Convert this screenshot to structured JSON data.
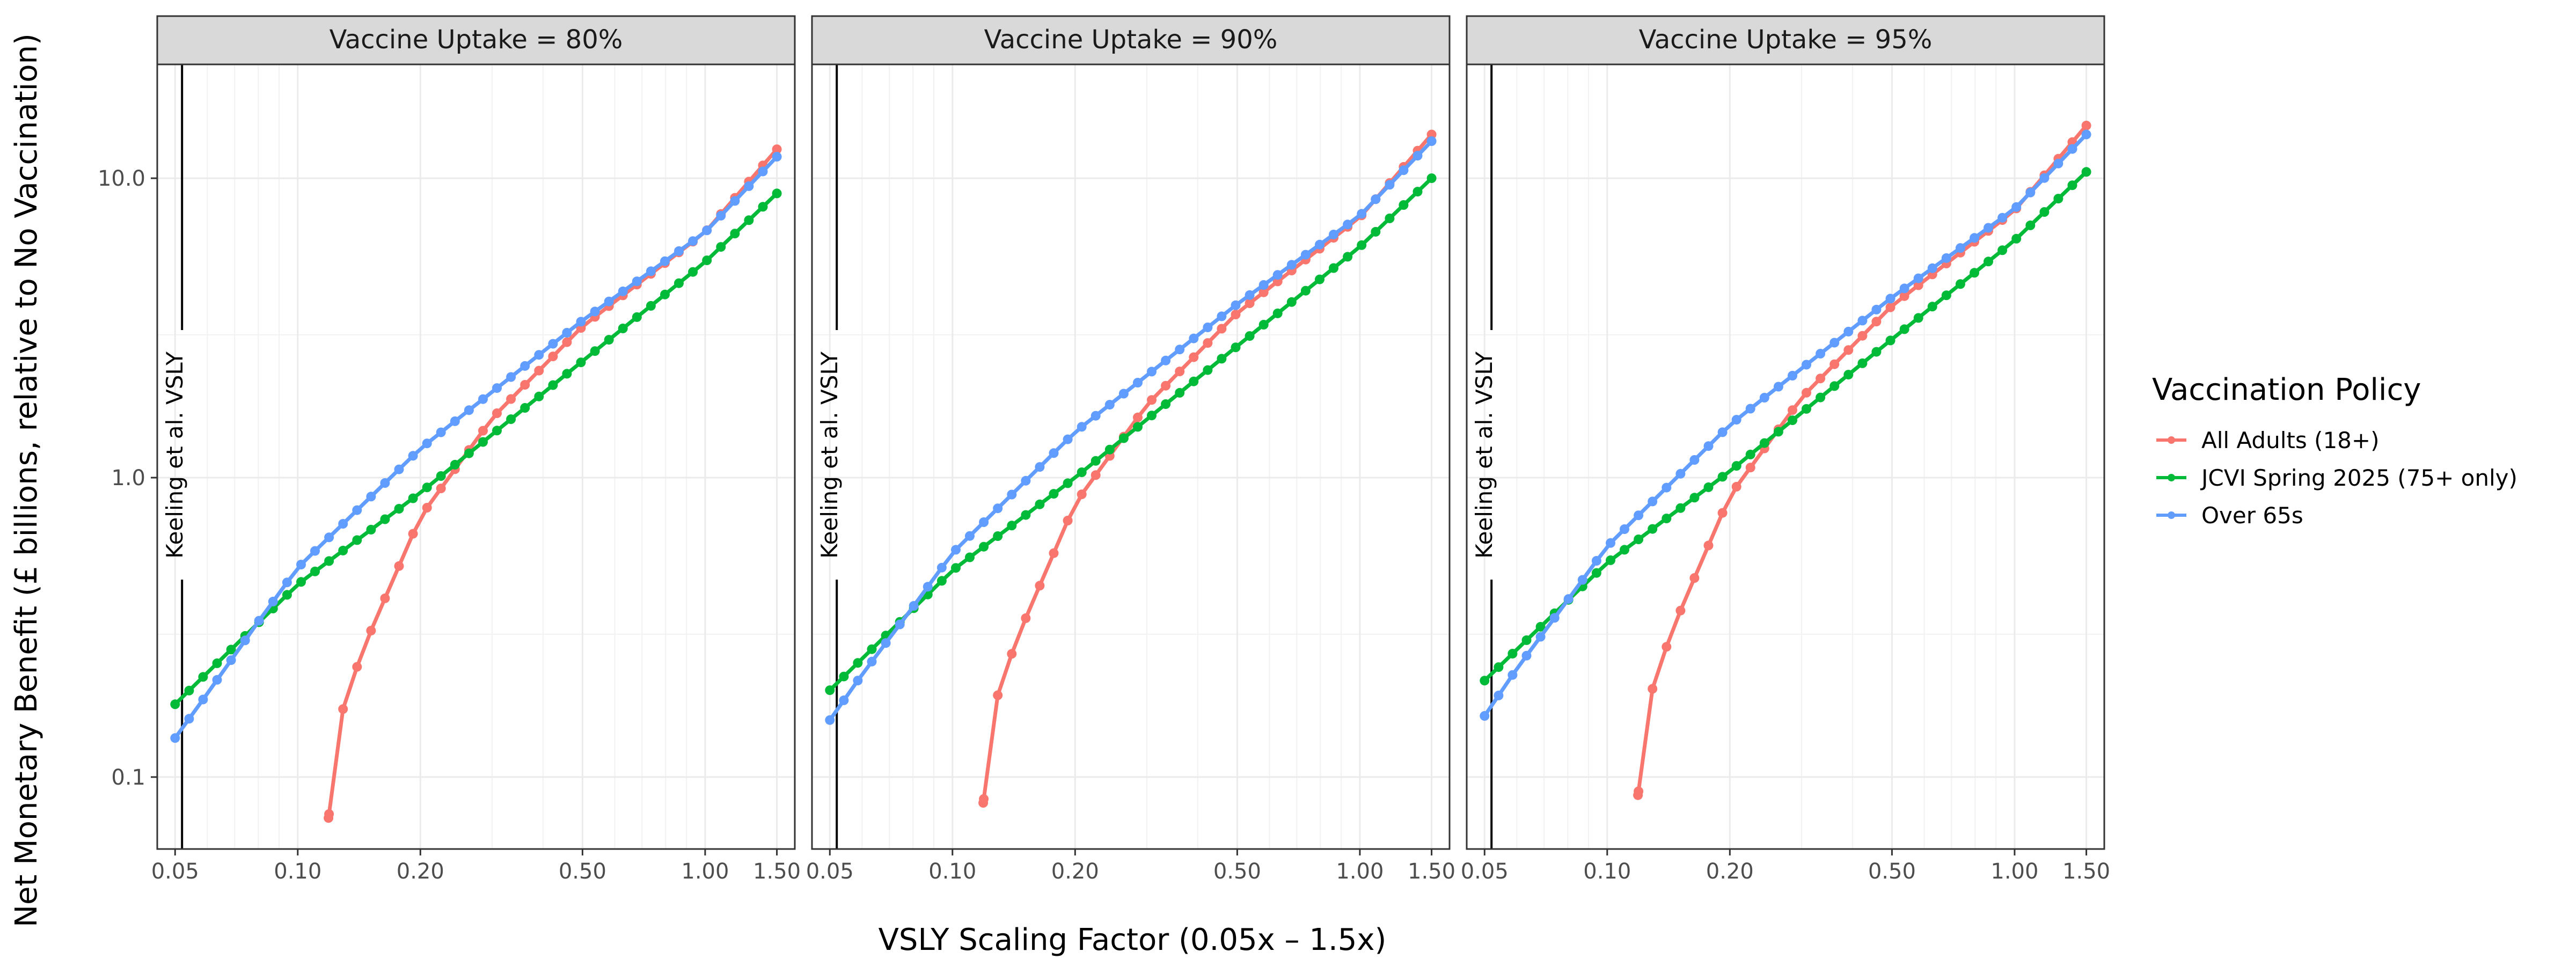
{
  "chart_data": {
    "type": "line",
    "scale": {
      "x": "log10",
      "y": "log10"
    },
    "xlim": [
      0.0452,
      1.66
    ],
    "ylim": [
      0.0575,
      24
    ],
    "xlabel": "VSLY Scaling Factor (0.05x – 1.5x)",
    "ylabel": "Net Monetary Benefit (£ billions, relative to No Vaccination)",
    "x_ticks": [
      0.05,
      0.1,
      0.2,
      0.5,
      1.0,
      1.5
    ],
    "x_tick_labels": [
      "0.05",
      "0.10",
      "0.20",
      "0.50",
      "1.00",
      "1.50"
    ],
    "y_ticks": [
      0.1,
      1.0,
      10.0
    ],
    "y_tick_labels": [
      "0.1",
      "1.0",
      "10.0"
    ],
    "grid": true,
    "legend": {
      "title": "Vaccination Policy",
      "position": "right",
      "entries": [
        "All Adults (18+)",
        "JCVI Spring 2025 (75+ only)",
        "Over 65s"
      ]
    },
    "vline": {
      "x": 0.052,
      "label": "Keeling et al. VSLY"
    },
    "colors": {
      "All Adults (18+)": "#F8766D",
      "JCVI Spring 2025 (75+ only)": "#00BA38",
      "Over 65s": "#619CFF"
    },
    "panels": [
      {
        "strip": "Vaccine Uptake = 80%",
        "series": [
          {
            "name": "All Adults (18+)",
            "anchors": [
              [
                0.119,
                0.073
              ],
              [
                0.13,
                0.18
              ],
              [
                0.15,
                0.3
              ],
              [
                0.2,
                0.74
              ],
              [
                0.3,
                1.58
              ],
              [
                0.5,
                3.2
              ],
              [
                1.0,
                6.6
              ],
              [
                1.5,
                12.5
              ]
            ]
          },
          {
            "name": "JCVI Spring 2025 (75+ only)",
            "anchors": [
              [
                0.05,
                0.175
              ],
              [
                0.1,
                0.44
              ],
              [
                0.2,
                0.89
              ],
              [
                0.5,
                2.45
              ],
              [
                1.0,
                5.25
              ],
              [
                1.5,
                8.9
              ]
            ]
          },
          {
            "name": "Over 65s",
            "anchors": [
              [
                0.05,
                0.135
              ],
              [
                0.06,
                0.19
              ],
              [
                0.08,
                0.33
              ],
              [
                0.1,
                0.5
              ],
              [
                0.2,
                1.25
              ],
              [
                0.5,
                3.35
              ],
              [
                1.0,
                6.6
              ],
              [
                1.5,
                11.8
              ]
            ]
          }
        ]
      },
      {
        "strip": "Vaccine Uptake = 90%",
        "series": [
          {
            "name": "All Adults (18+)",
            "anchors": [
              [
                0.119,
                0.082
              ],
              [
                0.13,
                0.2
              ],
              [
                0.15,
                0.33
              ],
              [
                0.2,
                0.82
              ],
              [
                0.3,
                1.75
              ],
              [
                0.5,
                3.55
              ],
              [
                1.0,
                7.4
              ],
              [
                1.5,
                14.0
              ]
            ]
          },
          {
            "name": "JCVI Spring 2025 (75+ only)",
            "anchors": [
              [
                0.05,
                0.195
              ],
              [
                0.1,
                0.49
              ],
              [
                0.2,
                1.0
              ],
              [
                0.5,
                2.75
              ],
              [
                1.0,
                5.9
              ],
              [
                1.5,
                10.0
              ]
            ]
          },
          {
            "name": "Over 65s",
            "anchors": [
              [
                0.05,
                0.155
              ],
              [
                0.06,
                0.22
              ],
              [
                0.08,
                0.37
              ],
              [
                0.1,
                0.56
              ],
              [
                0.2,
                1.42
              ],
              [
                0.5,
                3.8
              ],
              [
                1.0,
                7.5
              ],
              [
                1.5,
                13.3
              ]
            ]
          }
        ]
      },
      {
        "strip": "Vaccine Uptake = 95%",
        "series": [
          {
            "name": "All Adults (18+)",
            "anchors": [
              [
                0.119,
                0.087
              ],
              [
                0.13,
                0.21
              ],
              [
                0.15,
                0.35
              ],
              [
                0.2,
                0.87
              ],
              [
                0.3,
                1.85
              ],
              [
                0.5,
                3.75
              ],
              [
                1.0,
                7.8
              ],
              [
                1.5,
                15.0
              ]
            ]
          },
          {
            "name": "JCVI Spring 2025 (75+ only)",
            "anchors": [
              [
                0.05,
                0.21
              ],
              [
                0.1,
                0.52
              ],
              [
                0.2,
                1.05
              ],
              [
                0.5,
                2.9
              ],
              [
                1.0,
                6.2
              ],
              [
                1.5,
                10.5
              ]
            ]
          },
          {
            "name": "Over 65s",
            "anchors": [
              [
                0.05,
                0.16
              ],
              [
                0.06,
                0.23
              ],
              [
                0.08,
                0.39
              ],
              [
                0.1,
                0.59
              ],
              [
                0.2,
                1.5
              ],
              [
                0.5,
                4.0
              ],
              [
                1.0,
                7.9
              ],
              [
                1.5,
                14.0
              ]
            ]
          }
        ]
      }
    ]
  }
}
